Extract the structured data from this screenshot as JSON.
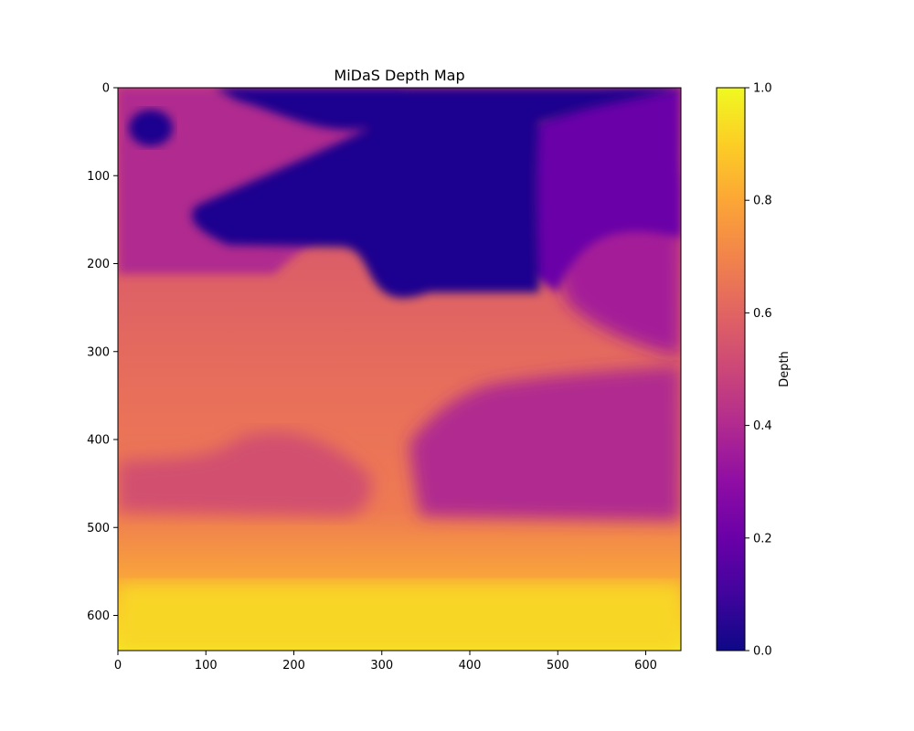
{
  "chart_data": {
    "type": "heatmap",
    "title": "MiDaS Depth Map",
    "colormap": "plasma",
    "x": {
      "ticks": [
        0,
        100,
        200,
        300,
        400,
        500,
        600
      ],
      "range": [
        0,
        640
      ]
    },
    "y": {
      "ticks": [
        0,
        100,
        200,
        300,
        400,
        500,
        600
      ],
      "range": [
        0,
        640
      ],
      "inverted": true
    },
    "colorbar": {
      "label": "Depth",
      "range": [
        0,
        1
      ],
      "ticks": [
        "0.0",
        "0.2",
        "0.4",
        "0.6",
        "0.8",
        "1.0"
      ],
      "tick_values": [
        0,
        0.2,
        0.4,
        0.6,
        0.8,
        1.0
      ]
    },
    "regions": [
      {
        "name": "sky-dark",
        "value": 0.03
      },
      {
        "name": "trees-upper-left",
        "value": 0.45
      },
      {
        "name": "trees-right",
        "value": 0.18
      },
      {
        "name": "background-right",
        "value": 0.33
      },
      {
        "name": "middle-ground",
        "value": 0.6
      },
      {
        "name": "mid-left-band",
        "value": 0.5
      },
      {
        "name": "mid-right-band",
        "value": 0.36
      },
      {
        "name": "foreground",
        "value": 0.95
      }
    ]
  }
}
